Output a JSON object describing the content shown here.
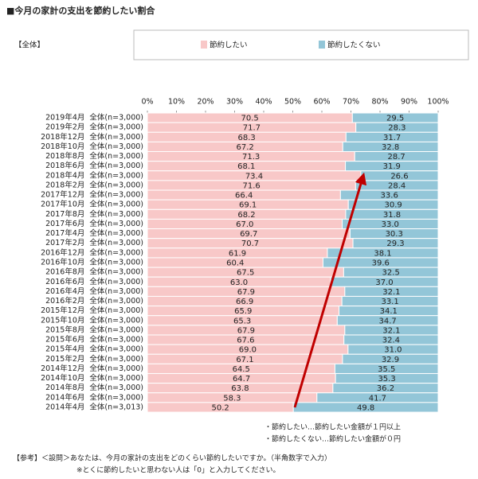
{
  "chart_data": {
    "type": "bar",
    "orientation": "horizontal",
    "stacked": true,
    "title": "■今月の家計の支出を節約したい割合",
    "subtitle": "【全体】",
    "categories": [
      "2019年4月  全体(n=3,000)",
      "2019年2月  全体(n=3,000)",
      "2018年12月  全体(n=3,000)",
      "2018年10月  全体(n=3,000)",
      "2018年8月  全体(n=3,000)",
      "2018年6月  全体(n=3,000)",
      "2018年4月  全体(n=3,000)",
      "2018年2月  全体(n=3,000)",
      "2017年12月  全体(n=3,000)",
      "2017年10月  全体(n=3,000)",
      "2017年8月  全体(n=3,000)",
      "2017年6月  全体(n=3,000)",
      "2017年4月  全体(n=3,000)",
      "2017年2月  全体(n=3,000)",
      "2016年12月  全体(n=3,000)",
      "2016年10月  全体(n=3,000)",
      "2016年8月  全体(n=3,000)",
      "2016年6月  全体(n=3,000)",
      "2016年4月  全体(n=3,000)",
      "2016年2月  全体(n=3,000)",
      "2015年12月  全体(n=3,000)",
      "2015年10月  全体(n=3,000)",
      "2015年8月  全体(n=3,000)",
      "2015年6月  全体(n=3,000)",
      "2015年4月  全体(n=3,000)",
      "2015年2月  全体(n=3,000)",
      "2014年12月  全体(n=3,000)",
      "2014年10月  全体(n=3,000)",
      "2014年8月  全体(n=3,000)",
      "2014年6月  全体(n=3,000)",
      "2014年4月  全体(n=3,013)"
    ],
    "series": [
      {
        "name": "節約したい",
        "color": "#f8c8c8",
        "values": [
          70.5,
          71.7,
          68.3,
          67.2,
          71.3,
          68.1,
          73.4,
          71.6,
          66.4,
          69.1,
          68.2,
          67.0,
          69.7,
          70.7,
          61.9,
          60.4,
          67.5,
          63.0,
          67.9,
          66.9,
          65.9,
          65.3,
          67.9,
          67.6,
          69.0,
          67.1,
          64.5,
          64.7,
          63.8,
          58.3,
          50.2
        ],
        "value_labels": [
          "70.5",
          "71.7",
          "68.3",
          "67.2",
          "71.3",
          "68.1",
          "73.4",
          "71.6",
          "66.4",
          "69.1",
          "68.2",
          "67.0",
          "69.7",
          "70.7",
          "61.9",
          "60.4",
          "67.5",
          "63.0",
          "67.9",
          "66.9",
          "65.9",
          "65.3",
          "67.9",
          "67.6",
          "69.0",
          "67.1",
          "64.5",
          "64.7",
          "63.8",
          "58.3",
          "50.2"
        ]
      },
      {
        "name": "節約したくない",
        "color": "#93c6d8",
        "values": [
          29.5,
          28.3,
          31.7,
          32.8,
          28.7,
          31.9,
          26.6,
          28.4,
          33.6,
          30.9,
          31.8,
          33.0,
          30.3,
          29.3,
          38.1,
          39.6,
          32.5,
          37.0,
          32.1,
          33.1,
          34.1,
          34.7,
          32.1,
          32.4,
          31.0,
          32.9,
          35.5,
          35.3,
          36.2,
          41.7,
          49.8
        ],
        "value_labels": [
          "29.5",
          "28.3",
          "31.7",
          "32.8",
          "28.7",
          "31.9",
          "26.6",
          "28.4",
          "33.6",
          "30.9",
          "31.8",
          "33.0",
          "30.3",
          "29.3",
          "38.1",
          "39.6",
          "32.5",
          "37.0",
          "32.1",
          "33.1",
          "34.1",
          "34.7",
          "32.1",
          "32.4",
          "31.0",
          "32.9",
          "35.5",
          "35.3",
          "36.2",
          "41.7",
          "49.8"
        ]
      }
    ],
    "xlim": [
      0,
      100
    ],
    "xticks": [
      {
        "value": 0,
        "label": "0%"
      },
      {
        "value": 10,
        "label": "10%"
      },
      {
        "value": 20,
        "label": "20%"
      },
      {
        "value": 30,
        "label": "30%"
      },
      {
        "value": 40,
        "label": "40%"
      },
      {
        "value": 50,
        "label": "50%"
      },
      {
        "value": 60,
        "label": "60%"
      },
      {
        "value": 70,
        "label": "70%"
      },
      {
        "value": 80,
        "label": "80%"
      },
      {
        "value": 90,
        "label": "90%"
      },
      {
        "value": 100,
        "label": "100%"
      }
    ],
    "legend": "top",
    "notes": [
      "・節約したい…節約したい金額が１円以上",
      "・節約したくない…節約したい金額が０円"
    ],
    "footnotes": [
      "【参考】＜設問＞あなたは、今月の家計の支出をどのくらい節約したいですか。（半角数字で入力）",
      "※とくに節約したいと思わない人は「0」と入力してください。"
    ]
  }
}
